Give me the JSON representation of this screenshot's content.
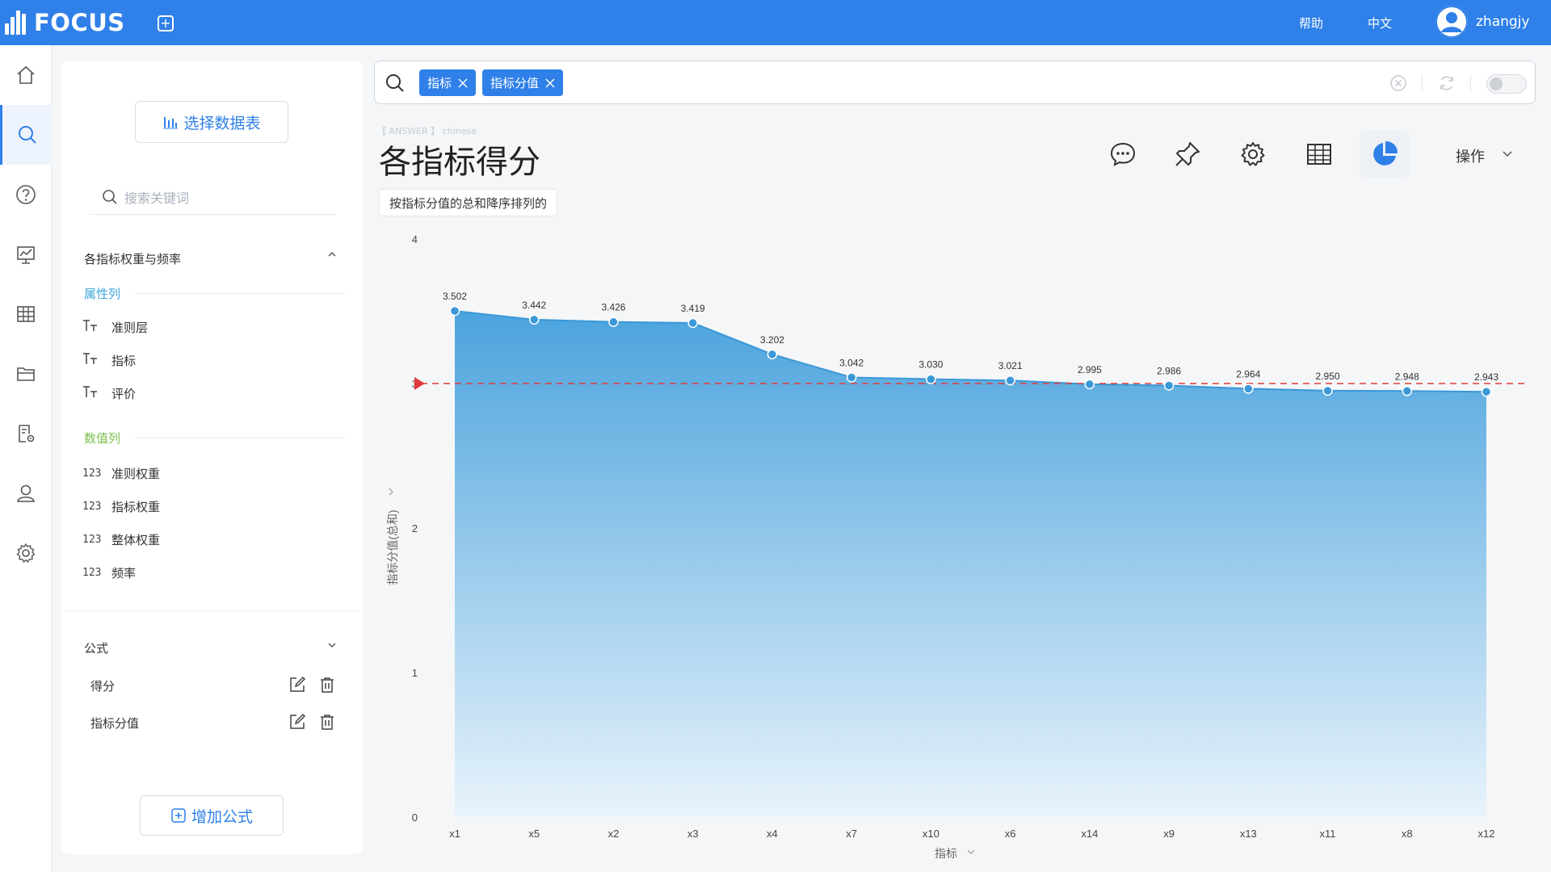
{
  "app": {
    "name": "FOCUS"
  },
  "header": {
    "help": "帮助",
    "language": "中文",
    "username": "zhangjy"
  },
  "rail": {
    "items": [
      {
        "name": "home",
        "icon": "home-icon"
      },
      {
        "name": "search",
        "icon": "search-icon",
        "active": true
      },
      {
        "name": "help",
        "icon": "question-icon"
      },
      {
        "name": "dashboard",
        "icon": "presentation-chart-icon"
      },
      {
        "name": "table",
        "icon": "table-icon"
      },
      {
        "name": "folder",
        "icon": "folder-icon"
      },
      {
        "name": "data-settings",
        "icon": "document-gear-icon"
      },
      {
        "name": "user",
        "icon": "user-icon"
      },
      {
        "name": "settings",
        "icon": "gear-icon"
      }
    ]
  },
  "left_panel": {
    "select_table_label": "选择数据表",
    "search_placeholder": "搜索关键词",
    "table_name": "各指标权重与频率",
    "attr_heading": "属性列",
    "attr_columns": [
      "准则层",
      "指标",
      "评价"
    ],
    "measure_heading": "数值列",
    "measure_icon_text": "123",
    "measure_columns": [
      "准则权重",
      "指标权重",
      "整体权重",
      "频率"
    ],
    "formula_heading": "公式",
    "formulas": [
      "得分",
      "指标分值"
    ],
    "add_formula_label": "增加公式"
  },
  "query": {
    "tokens": [
      "指标",
      "指标分值"
    ]
  },
  "answer": {
    "tag": "【 ANSWER 】 chinese",
    "title": "各指标得分",
    "sort_desc": "按指标分值的总和降序排列的",
    "operations_label": "操作"
  },
  "colors": {
    "brand": "#2f80e8",
    "area_top": "#4ba3dd",
    "area_bottom": "#e8f3fb",
    "reference_line": "#e03b3b"
  },
  "chart_data": {
    "type": "area",
    "x": [
      "x1",
      "x5",
      "x2",
      "x3",
      "x4",
      "x7",
      "x10",
      "x6",
      "x14",
      "x9",
      "x13",
      "x11",
      "x8",
      "x12"
    ],
    "values": [
      3.502,
      3.442,
      3.426,
      3.419,
      3.202,
      3.042,
      3.03,
      3.021,
      2.995,
      2.986,
      2.964,
      2.95,
      2.948,
      2.943
    ],
    "labels": [
      "3.502",
      "3.442",
      "3.426",
      "3.419",
      "3.202",
      "3.042",
      "3.030",
      "3.021",
      "2.995",
      "2.986",
      "2.964",
      "2.950",
      "2.948",
      "2.943"
    ],
    "xlabel": "指标",
    "ylabel": "指标分值(总和)",
    "ylim": [
      0,
      4
    ],
    "yticks": [
      0,
      1,
      2,
      3,
      4
    ],
    "reference_line": 3,
    "grid": false
  }
}
